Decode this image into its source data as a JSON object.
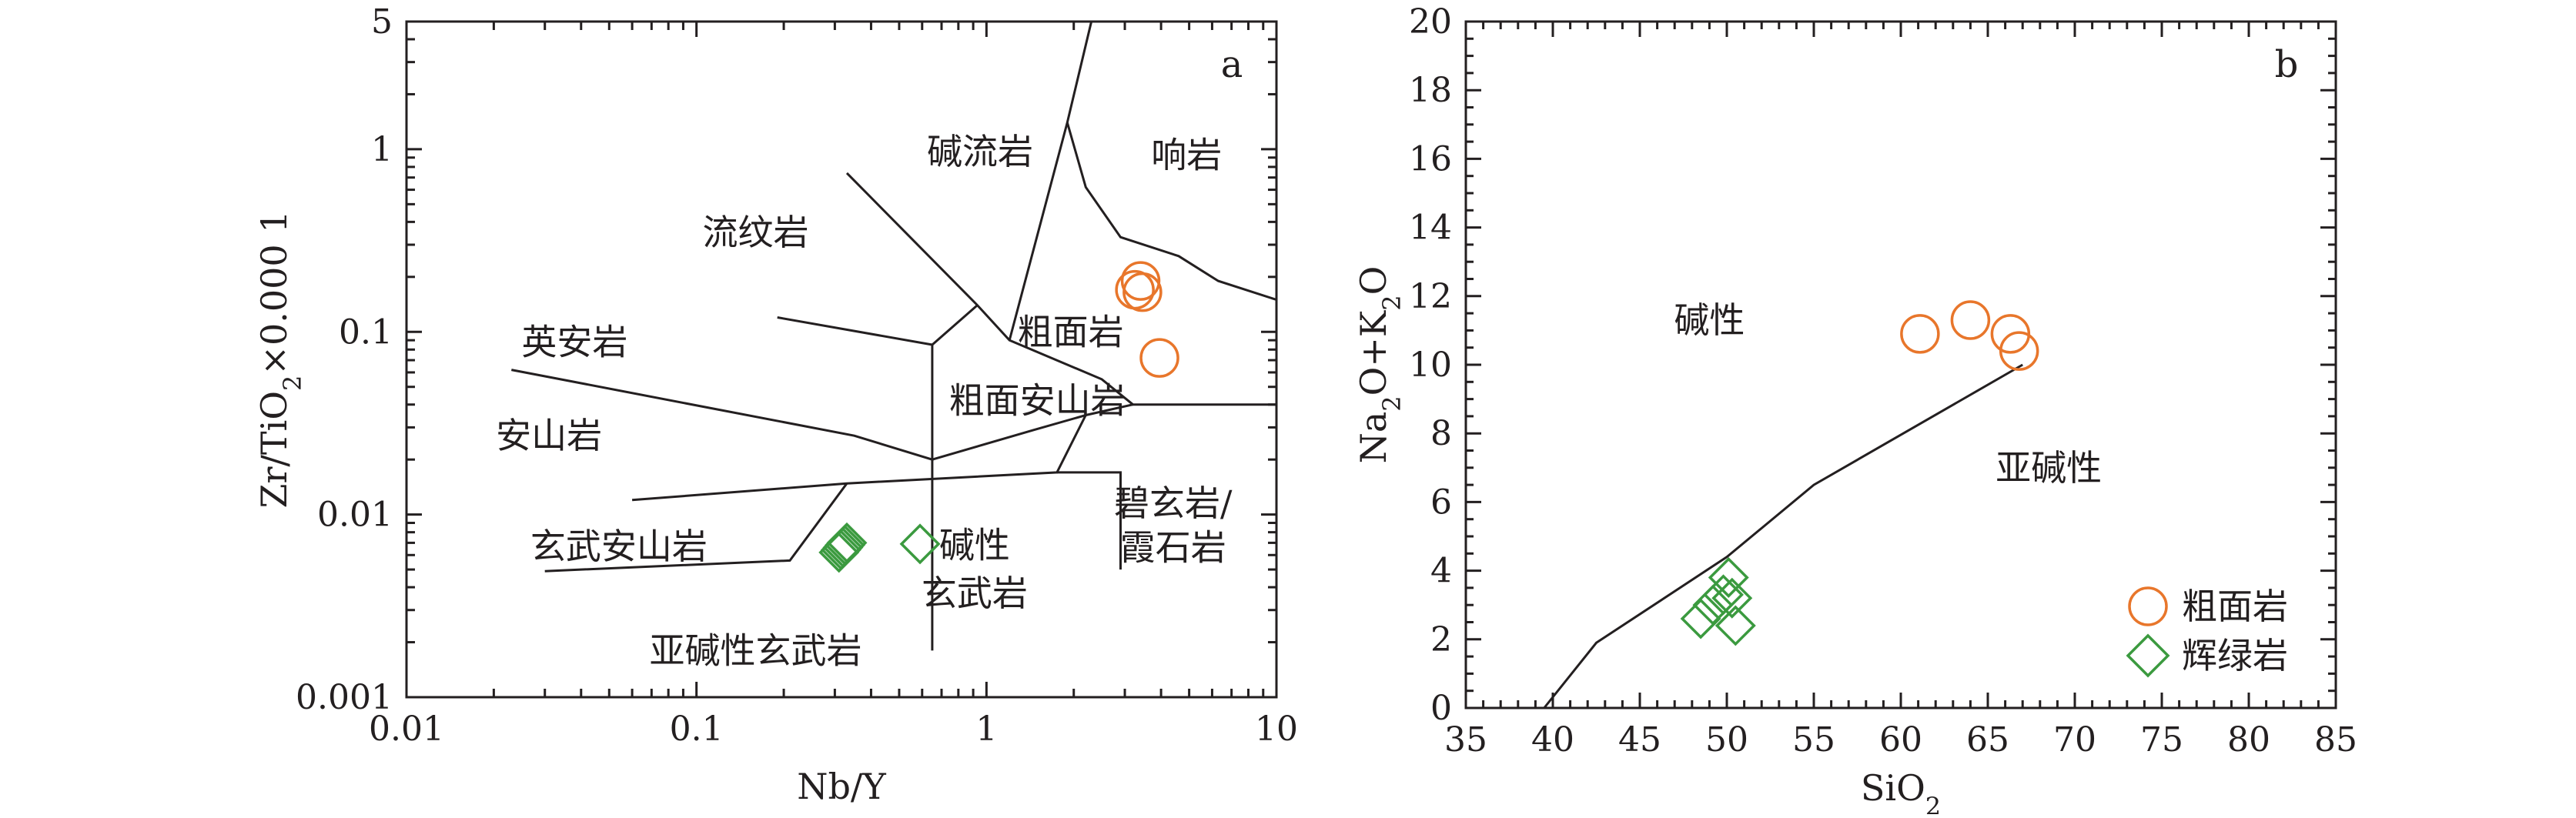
{
  "colors": {
    "syenite": "#e8762b",
    "diabase": "#3b9a3f",
    "ink": "#231f20"
  },
  "legend": [
    {
      "label": "粗面岩",
      "marker": "circle",
      "color": "#e8762b"
    },
    {
      "label": "辉绿岩",
      "marker": "diamond",
      "color": "#3b9a3f"
    }
  ],
  "chart_data": [
    {
      "type": "scatter",
      "panel": "a",
      "xlabel": "Nb/Y",
      "ylabel_parts": {
        "pre": "Zr/TiO",
        "sub": "2",
        "post": "×0.000 1"
      },
      "x_scale": "log",
      "y_scale": "log",
      "xlim": [
        0.01,
        10
      ],
      "ylim": [
        0.001,
        5
      ],
      "x_ticks": [
        0.01,
        0.1,
        1,
        10
      ],
      "x_tick_labels": [
        "0.01",
        "0.1",
        "1",
        "10"
      ],
      "y_ticks": [
        0.001,
        0.01,
        0.1,
        1,
        5
      ],
      "y_tick_labels": [
        "0.001",
        "0.01",
        "0.1",
        "1",
        "5"
      ],
      "field_boundaries": [
        [
          [
            0.33,
            0.74
          ],
          [
            0.93,
            0.14
          ],
          [
            1.2,
            0.09
          ],
          [
            2.5,
            0.055
          ],
          [
            3.2,
            0.04
          ],
          [
            10,
            0.04
          ]
        ],
        [
          [
            2.3,
            5
          ],
          [
            1.9,
            1.4
          ],
          [
            1.2,
            0.09
          ]
        ],
        [
          [
            1.9,
            1.4
          ],
          [
            2.2,
            0.62
          ],
          [
            2.9,
            0.33
          ],
          [
            4.6,
            0.26
          ],
          [
            6.3,
            0.19
          ],
          [
            10,
            0.15
          ]
        ],
        [
          [
            0.93,
            0.14
          ],
          [
            0.65,
            0.085
          ],
          [
            0.19,
            0.12
          ]
        ],
        [
          [
            0.65,
            0.085
          ],
          [
            0.65,
            0.02
          ],
          [
            0.35,
            0.027
          ],
          [
            0.023,
            0.062
          ]
        ],
        [
          [
            0.65,
            0.02
          ],
          [
            1.45,
            0.029
          ],
          [
            2.2,
            0.035
          ],
          [
            3.2,
            0.04
          ]
        ],
        [
          [
            2.2,
            0.035
          ],
          [
            1.75,
            0.017
          ],
          [
            0.33,
            0.0148
          ],
          [
            0.06,
            0.012
          ]
        ],
        [
          [
            1.75,
            0.017
          ],
          [
            2.9,
            0.017
          ],
          [
            2.9,
            0.005
          ]
        ],
        [
          [
            0.65,
            0.0018
          ],
          [
            0.65,
            0.02
          ]
        ],
        [
          [
            0.33,
            0.0148
          ],
          [
            0.21,
            0.0056
          ],
          [
            0.03,
            0.0049
          ]
        ]
      ],
      "field_labels": [
        {
          "text": "碱流岩",
          "x": 0.95,
          "y": 0.97
        },
        {
          "text": "响岩",
          "x": 4.9,
          "y": 0.93
        },
        {
          "text": "流纹岩",
          "x": 0.16,
          "y": 0.35
        },
        {
          "text": "粗面岩",
          "x": 1.95,
          "y": 0.1
        },
        {
          "text": "英安岩",
          "x": 0.038,
          "y": 0.088
        },
        {
          "text": "粗面安山岩",
          "x": 1.5,
          "y": 0.042
        },
        {
          "text": "安山岩",
          "x": 0.031,
          "y": 0.027
        },
        {
          "text": "碧玄岩/",
          "x": 4.4,
          "y": 0.0115
        },
        {
          "text": "霞石岩",
          "x": 4.4,
          "y": 0.0066
        },
        {
          "text": "玄武安山岩",
          "x": 0.054,
          "y": 0.0067
        },
        {
          "text": "碱性",
          "x": 0.91,
          "y": 0.0068
        },
        {
          "text": "玄武岩",
          "x": 0.91,
          "y": 0.0037
        },
        {
          "text": "亚碱性玄武岩",
          "x": 0.16,
          "y": 0.0018
        }
      ],
      "series": [
        {
          "name": "粗面岩",
          "marker": "circle",
          "color": "#e8762b",
          "points": [
            [
              3.4,
              0.19
            ],
            [
              3.25,
              0.17
            ],
            [
              3.45,
              0.165
            ],
            [
              3.95,
              0.072
            ]
          ]
        },
        {
          "name": "辉绿岩",
          "marker": "diamond",
          "color": "#3b9a3f",
          "points": [
            [
              0.33,
              0.007
            ],
            [
              0.32,
              0.0066
            ],
            [
              0.315,
              0.0064
            ],
            [
              0.31,
              0.0062
            ],
            [
              0.325,
              0.0068
            ],
            [
              0.59,
              0.0069
            ]
          ]
        }
      ]
    },
    {
      "type": "scatter",
      "panel": "b",
      "xlabel_parts": {
        "pre": "SiO",
        "sub": "2",
        "post": ""
      },
      "ylabel_parts": {
        "pre": "Na",
        "sub1": "2",
        "mid": "O+K",
        "sub2": "2",
        "post": "O"
      },
      "xlim": [
        35,
        85
      ],
      "ylim": [
        0,
        20
      ],
      "x_ticks": [
        35,
        40,
        45,
        50,
        55,
        60,
        65,
        70,
        75,
        80,
        85
      ],
      "x_tick_labels": [
        "35",
        "40",
        "45",
        "50",
        "55",
        "60",
        "65",
        "70",
        "75",
        "80",
        "85"
      ],
      "y_ticks": [
        0,
        2,
        4,
        6,
        8,
        10,
        12,
        14,
        16,
        18,
        20
      ],
      "y_tick_labels": [
        "0",
        "2",
        "4",
        "6",
        "8",
        "10",
        "12",
        "14",
        "16",
        "18",
        "20"
      ],
      "boundary": [
        [
          39.5,
          0
        ],
        [
          42.5,
          1.9
        ],
        [
          50,
          4.4
        ],
        [
          55,
          6.5
        ],
        [
          67,
          10
        ]
      ],
      "field_labels": [
        {
          "text": "碱性",
          "x": 49,
          "y": 11.3
        },
        {
          "text": "亚碱性",
          "x": 68.5,
          "y": 7
        }
      ],
      "series": [
        {
          "name": "粗面岩",
          "marker": "circle",
          "color": "#e8762b",
          "points": [
            [
              61.1,
              10.9
            ],
            [
              64,
              11.3
            ],
            [
              66.3,
              10.9
            ],
            [
              66.8,
              10.4
            ]
          ]
        },
        {
          "name": "辉绿岩",
          "marker": "diamond",
          "color": "#3b9a3f",
          "points": [
            [
              48.5,
              2.6
            ],
            [
              49.2,
              3.0
            ],
            [
              49.8,
              3.3
            ],
            [
              50.1,
              3.8
            ],
            [
              50.3,
              3.2
            ],
            [
              50.5,
              2.4
            ]
          ]
        }
      ]
    }
  ]
}
